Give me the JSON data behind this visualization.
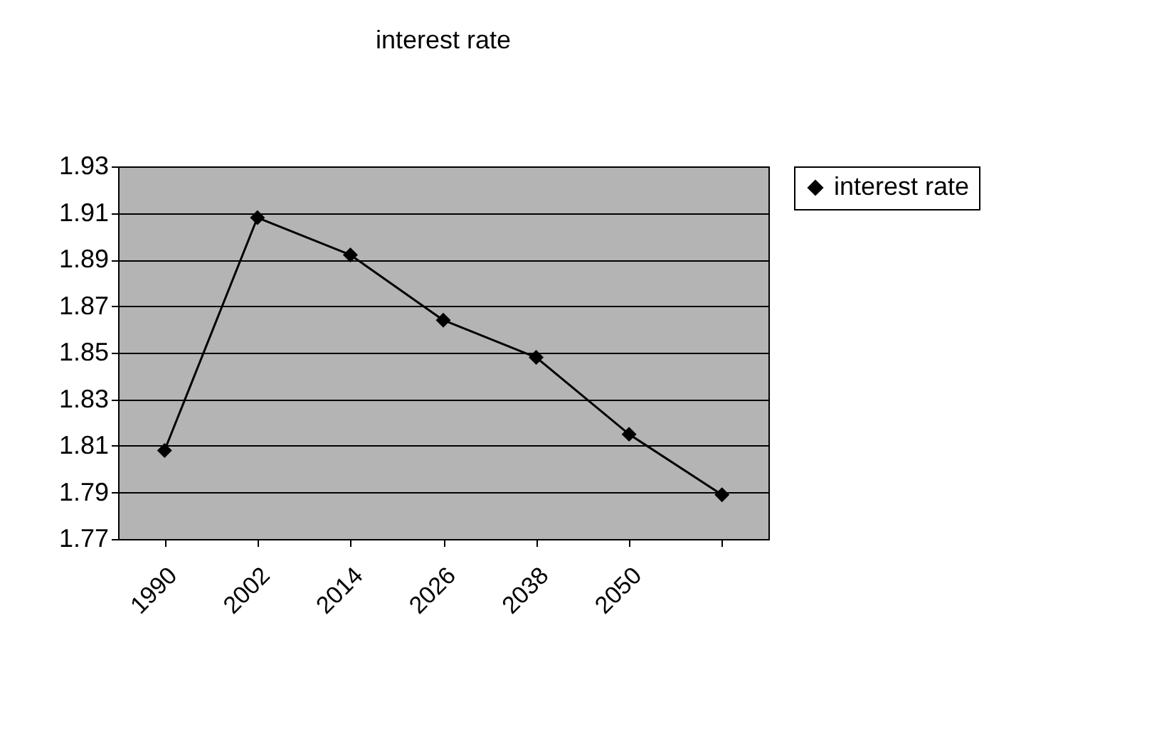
{
  "chart_data": {
    "type": "line",
    "title": "interest rate",
    "categories": [
      "1990",
      "2002",
      "2014",
      "2026",
      "2038",
      "2050",
      null
    ],
    "series": [
      {
        "name": "interest rate",
        "color": "#000000",
        "values": [
          1.808,
          1.908,
          1.892,
          1.864,
          1.848,
          1.815,
          1.789
        ]
      }
    ],
    "ylim": [
      1.77,
      1.93
    ],
    "yticks": [
      1.77,
      1.79,
      1.81,
      1.83,
      1.85,
      1.87,
      1.89,
      1.91,
      1.93
    ],
    "grid": "y",
    "legend": "right",
    "marker": "diamond",
    "line_style": "solid"
  }
}
